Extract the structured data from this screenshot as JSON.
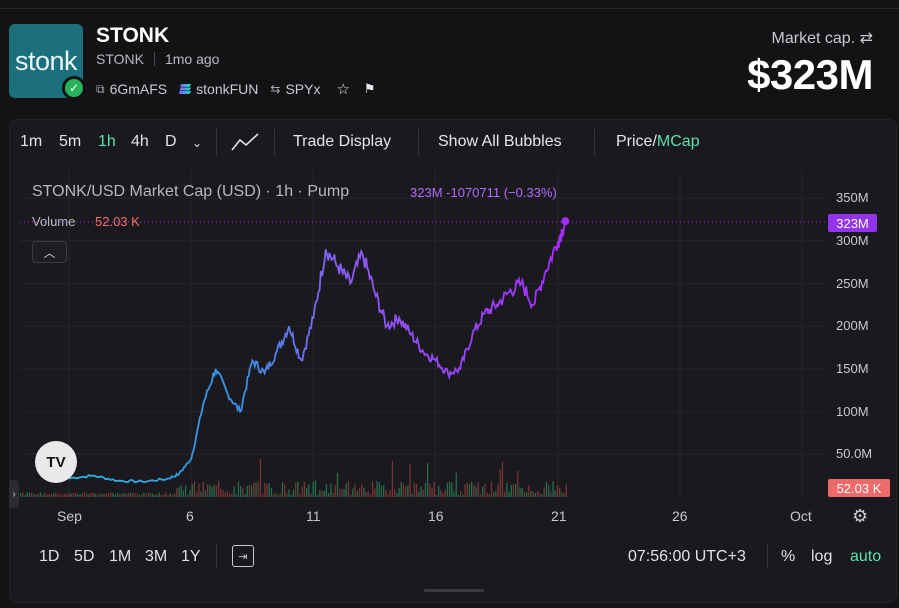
{
  "token": {
    "logo_text": "stonk",
    "name": "STONK",
    "symbol": "STONK",
    "age": "1mo ago",
    "address": "6GmAFS",
    "creator": "stonkFUN",
    "pair": "SPYx"
  },
  "market_cap": {
    "label": "Market cap.",
    "value": "$323M"
  },
  "toolbar": {
    "timeframes": [
      "1m",
      "5m",
      "1h",
      "4h",
      "D"
    ],
    "active_timeframe": "1h",
    "trade_display": "Trade Display",
    "show_bubbles": "Show All Bubbles",
    "price_label": "Price",
    "slash": "/",
    "mcap_label": "MCap"
  },
  "chart_header": {
    "title": "STONK/USD Market Cap (USD) · 1h · Pump",
    "value_line": "323M  -1070711 (−0.33%)",
    "volume_label": "Volume",
    "volume_value": "52.03 K"
  },
  "chart_data": {
    "type": "line",
    "y_ticks": [
      "350M",
      "300M",
      "250M",
      "200M",
      "150M",
      "100M",
      "50.0M"
    ],
    "y_range": [
      0,
      380
    ],
    "y_unit": "M",
    "x_ticks": [
      "Sep",
      "6",
      "11",
      "16",
      "21",
      "26",
      "Oct"
    ],
    "last_value_tag": "323M",
    "volume_tag": "52.03 K",
    "series": [
      {
        "values_by_day": [
          [
            1,
            22
          ],
          [
            2,
            25
          ],
          [
            3,
            19
          ],
          [
            4,
            18
          ],
          [
            5,
            21
          ],
          [
            5.5,
            27
          ],
          [
            6,
            45
          ],
          [
            6.5,
            110
          ],
          [
            7,
            150
          ],
          [
            7.5,
            120
          ],
          [
            8,
            100
          ],
          [
            8.5,
            160
          ],
          [
            9,
            145
          ],
          [
            9.5,
            170
          ],
          [
            10,
            200
          ],
          [
            10.5,
            160
          ],
          [
            11,
            210
          ],
          [
            11.5,
            290
          ],
          [
            12,
            270
          ],
          [
            12.5,
            250
          ],
          [
            13,
            285
          ],
          [
            13.5,
            240
          ],
          [
            14,
            200
          ],
          [
            14.5,
            210
          ],
          [
            15,
            190
          ],
          [
            15.5,
            170
          ],
          [
            16,
            160
          ],
          [
            16.5,
            145
          ],
          [
            17,
            150
          ],
          [
            17.5,
            190
          ],
          [
            18,
            215
          ],
          [
            18.5,
            225
          ],
          [
            19,
            240
          ],
          [
            19.5,
            250
          ],
          [
            20,
            225
          ],
          [
            20.5,
            265
          ],
          [
            21,
            300
          ],
          [
            21.3,
            323
          ]
        ]
      }
    ]
  },
  "range_buttons": [
    "1D",
    "5D",
    "1M",
    "3M",
    "1Y"
  ],
  "clock": "07:56:00 UTC+3",
  "options": {
    "percent": "%",
    "log": "log",
    "auto": "auto"
  },
  "colors": {
    "accent": "#5be0ae",
    "line_start": "#26b6e8",
    "line_end": "#a62cff",
    "vol_up": "#26a69a",
    "vol_down": "#ef5350"
  }
}
